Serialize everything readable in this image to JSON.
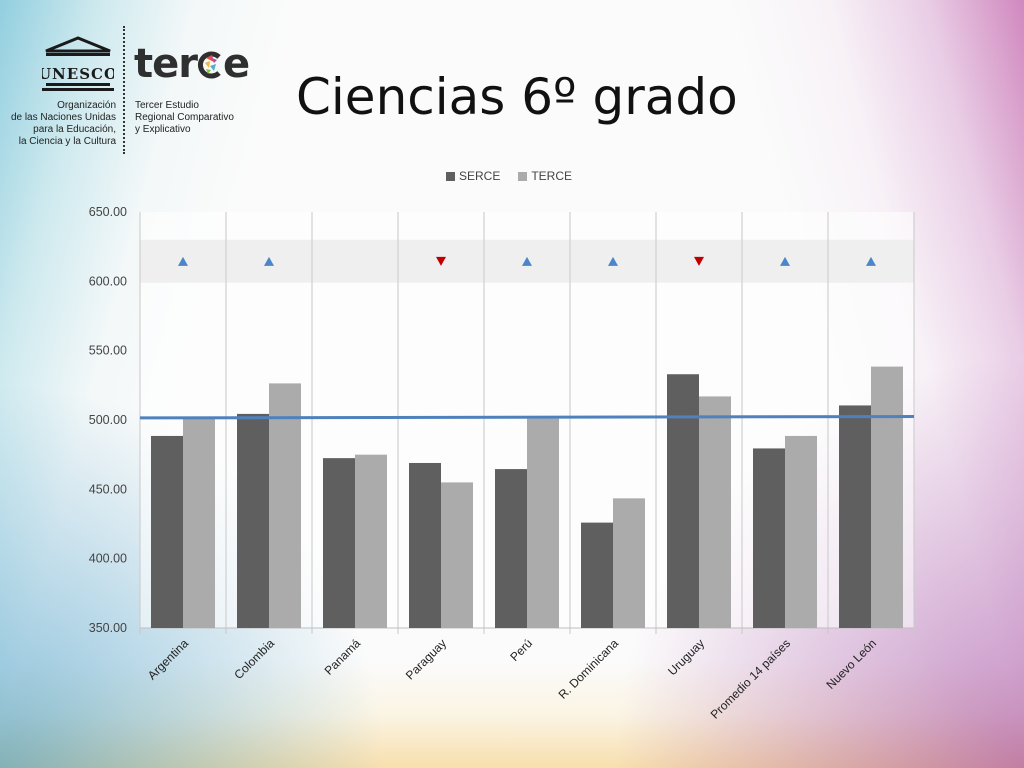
{
  "slide": {
    "title": "Ciencias 6º grado"
  },
  "logos": {
    "unesco_wordmark": "UNESCO",
    "unesco_lines": [
      "Organización",
      "de las Naciones Unidas",
      "para la Educación,",
      "la Ciencia y la Cultura"
    ],
    "terce_wordmark_left": "ter",
    "terce_wordmark_right": "e",
    "terce_lines": [
      "Tercer Estudio",
      "Regional Comparativo",
      "y Explicativo"
    ]
  },
  "colors": {
    "serce": "#5f5f5f",
    "terce": "#ababab",
    "average_line": "#4f81bd",
    "arrow_up": "#4a86c8",
    "arrow_down": "#c00000",
    "marker_band": "#efefef"
  },
  "chart_data": {
    "type": "bar",
    "categories": [
      "Argentina",
      "Colombia",
      "Panamá",
      "Paraguay",
      "Perú",
      "R. Dominicana",
      "Uruguay",
      "Promedio 14 países",
      "Nuevo León"
    ],
    "series": [
      {
        "name": "SERCE",
        "values": [
          488.5,
          504.4,
          472.5,
          469.0,
          464.6,
          426.0,
          533.0,
          479.5,
          510.5
        ]
      },
      {
        "name": "TERCE",
        "values": [
          502.0,
          526.4,
          475.0,
          455.0,
          501.0,
          443.5,
          517.0,
          488.5,
          538.5
        ]
      }
    ],
    "reference_line": [
      501.5,
      502.5
    ],
    "change_markers": [
      "up",
      "up",
      "",
      "down",
      "up",
      "up",
      "down",
      "up",
      "up"
    ],
    "ylim": [
      350,
      650
    ],
    "yticks": [
      "350.00",
      "400.00",
      "450.00",
      "500.00",
      "550.00",
      "600.00",
      "650.00"
    ],
    "ytick_values": [
      350,
      400,
      450,
      500,
      550,
      600,
      650
    ],
    "legend_position": "top-center",
    "grid": "vertical category separators"
  }
}
